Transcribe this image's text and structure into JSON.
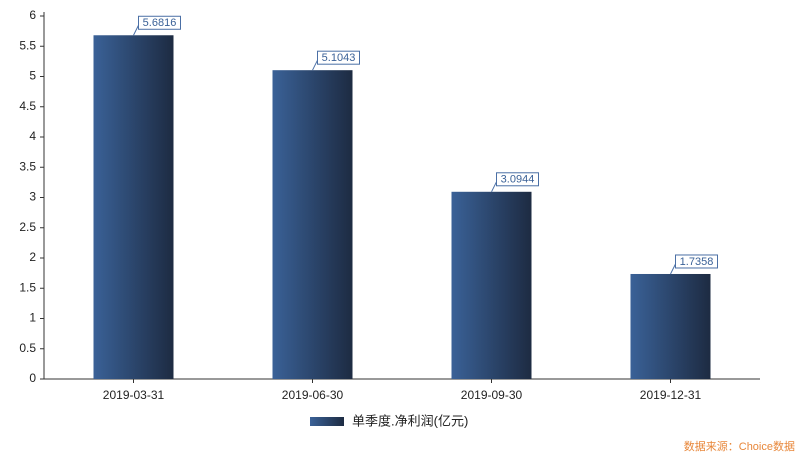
{
  "chart_data": {
    "type": "bar",
    "categories": [
      "2019-03-31",
      "2019-06-30",
      "2019-09-30",
      "2019-12-31"
    ],
    "series": [
      {
        "name": "单季度.净利润(亿元)",
        "color": "#3a6197",
        "values": [
          5.6816,
          5.1043,
          3.0944,
          1.7358
        ]
      }
    ],
    "ylim": [
      0,
      6
    ],
    "yticks": [
      0,
      0.5,
      1,
      1.5,
      2,
      2.5,
      3,
      3.5,
      4,
      4.5,
      5,
      5.5,
      6
    ],
    "grid": false,
    "legend": "bottom",
    "source": "数据来源：Choice数据"
  }
}
